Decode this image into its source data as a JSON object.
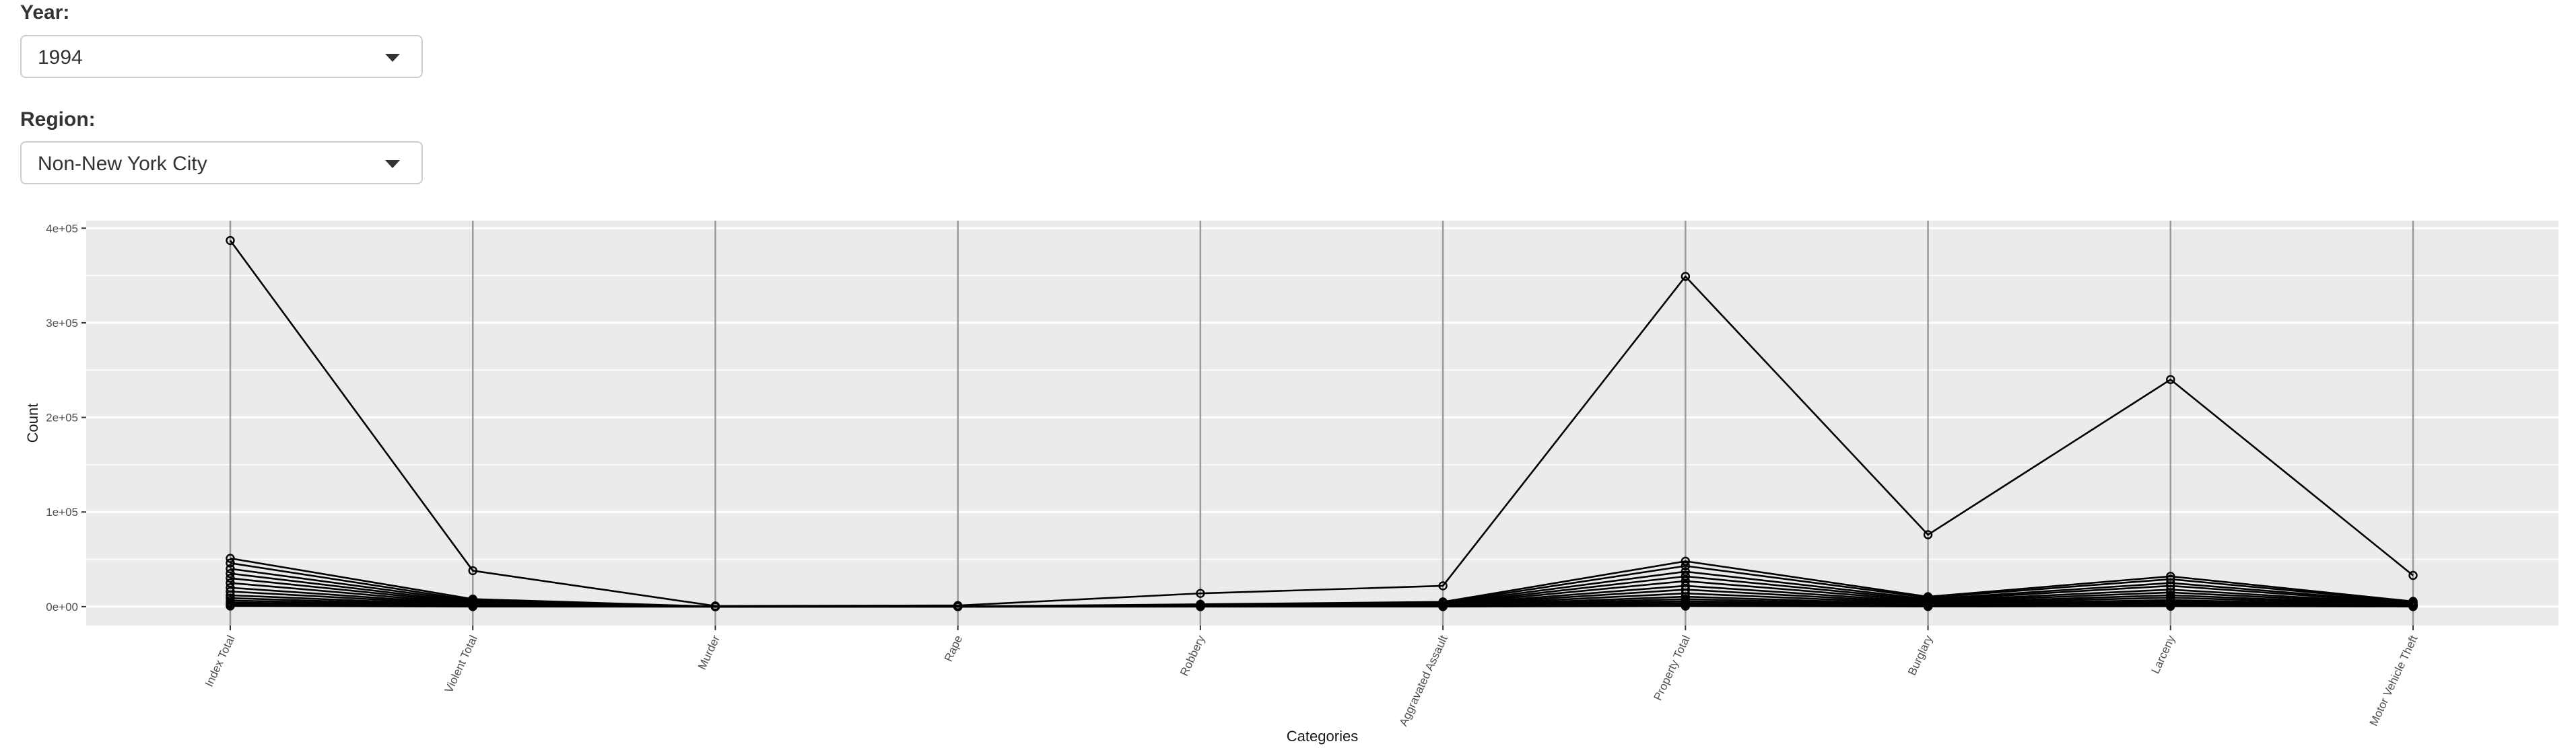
{
  "controls": {
    "year": {
      "label": "Year:",
      "value": "1994"
    },
    "region": {
      "label": "Region:",
      "value": "Non-New York City"
    }
  },
  "chart_data": {
    "type": "line",
    "title": "",
    "xlabel": "Categories",
    "ylabel": "Count",
    "categories": [
      "Index Total",
      "Violent Total",
      "Murder",
      "Rape",
      "Robbery",
      "Aggravated Assault",
      "Property Total",
      "Burglary",
      "Larceny",
      "Motor Vehicle Theft"
    ],
    "y_ticks": [
      {
        "value": 0,
        "label": "0e+00"
      },
      {
        "value": 100000,
        "label": "1e+05"
      },
      {
        "value": 200000,
        "label": "2e+05"
      },
      {
        "value": 300000,
        "label": "3e+05"
      },
      {
        "value": 400000,
        "label": "4e+05"
      }
    ],
    "ylim": [
      -20000,
      408000
    ],
    "grid": true,
    "legend": "none",
    "colors": {
      "panel": "#ebebeb",
      "grid": "#ffffff",
      "line": "#000000",
      "vline": "#9a9a9a",
      "text": "#4d4d4d",
      "title": "#1a1a1a"
    },
    "series": [
      {
        "values": [
          387000,
          38000,
          700,
          1200,
          14000,
          22000,
          349000,
          76000,
          240000,
          33000
        ]
      },
      {
        "values": [
          51000,
          8000,
          60,
          250,
          2500,
          5000,
          48000,
          10500,
          32000,
          5500
        ]
      },
      {
        "values": [
          46000,
          6500,
          50,
          200,
          2000,
          4200,
          43000,
          9500,
          29000,
          5000
        ]
      },
      {
        "values": [
          40000,
          5500,
          40,
          180,
          1700,
          3600,
          37000,
          8000,
          25000,
          4200
        ]
      },
      {
        "values": [
          35000,
          4500,
          35,
          150,
          1400,
          2900,
          32000,
          7000,
          22000,
          3600
        ]
      },
      {
        "values": [
          30000,
          3800,
          30,
          130,
          1100,
          2500,
          27000,
          6000,
          18000,
          3000
        ]
      },
      {
        "values": [
          25000,
          3000,
          25,
          110,
          900,
          2000,
          22000,
          5000,
          15000,
          2500
        ]
      },
      {
        "values": [
          20000,
          2400,
          20,
          90,
          700,
          1600,
          18000,
          4000,
          12000,
          2000
        ]
      },
      {
        "values": [
          16000,
          1900,
          15,
          70,
          550,
          1300,
          14000,
          3200,
          9500,
          1600
        ]
      },
      {
        "values": [
          12000,
          1400,
          10,
          55,
          400,
          950,
          10500,
          2400,
          7000,
          1200
        ]
      },
      {
        "values": [
          9000,
          1000,
          8,
          40,
          300,
          700,
          8000,
          1800,
          5500,
          900
        ]
      },
      {
        "values": [
          6500,
          700,
          5,
          30,
          200,
          480,
          5800,
          1300,
          3900,
          650
        ]
      },
      {
        "values": [
          4500,
          450,
          3,
          20,
          130,
          300,
          4000,
          900,
          2700,
          450
        ]
      },
      {
        "values": [
          2800,
          300,
          2,
          12,
          80,
          200,
          2500,
          560,
          1700,
          280
        ]
      },
      {
        "values": [
          1500,
          150,
          1,
          6,
          40,
          100,
          1350,
          300,
          900,
          150
        ]
      },
      {
        "values": [
          600,
          60,
          0,
          3,
          15,
          40,
          540,
          120,
          360,
          60
        ]
      }
    ]
  }
}
